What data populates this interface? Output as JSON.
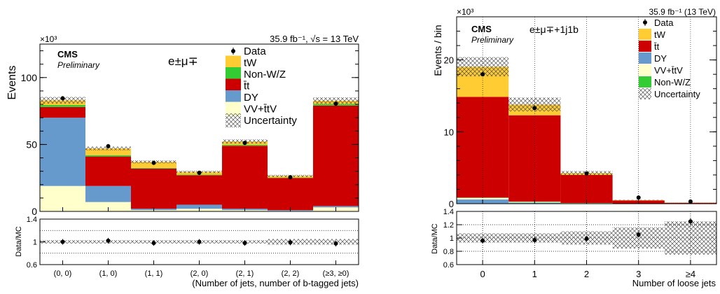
{
  "colors": {
    "tW": "#ffcc33",
    "nonwz": "#33cc33",
    "tt": "#cc0000",
    "dy": "#6699cc",
    "vv": "#ffffcc",
    "data": "#000000"
  },
  "chart_data": [
    {
      "type": "bar",
      "stacked": true,
      "channel_label": "e±μ∓",
      "cms_label": "CMS",
      "prelim_label": "Preliminary",
      "lumi_label": "35.9 fb⁻¹, √s = 13 TeV",
      "exponent_label": "×10³",
      "ylabel": "Events",
      "xlabel": "(Number of jets, number of b-tagged jets)",
      "ratio_ylabel": "Data/MC",
      "categories": [
        "(0, 0)",
        "(1, 0)",
        "(1, 1)",
        "(2, 0)",
        "(2, 1)",
        "(2, 2)",
        "(≥3, ≥0)"
      ],
      "ylim": [
        0,
        125
      ],
      "yticks": [
        0,
        50,
        100
      ],
      "yticklabels": [
        "0",
        "50",
        "100"
      ],
      "series": [
        {
          "name": "VV+t̄tV",
          "key": "vv",
          "values": [
            19,
            7,
            1,
            2,
            1,
            0.5,
            3
          ]
        },
        {
          "name": "DY",
          "key": "dy",
          "values": [
            51,
            12,
            1,
            3,
            1,
            0.5,
            1
          ]
        },
        {
          "name": "t̄t",
          "key": "tt",
          "values": [
            8,
            22,
            30,
            22,
            47,
            24,
            75
          ]
        },
        {
          "name": "Non-W/Z",
          "key": "nonwz",
          "values": [
            1.5,
            1,
            0.5,
            0.5,
            0.7,
            0.3,
            1.2
          ]
        },
        {
          "name": "tW",
          "key": "tW",
          "values": [
            3.5,
            5,
            4.5,
            2,
            2.5,
            1.2,
            2.5
          ]
        }
      ],
      "data_values": [
        84.5,
        48.7,
        36.3,
        28.8,
        51.2,
        25.5,
        80.5
      ],
      "uncertainty_frac": 0.03,
      "ratio": {
        "ylim": [
          0.6,
          1.4
        ],
        "yticks": [
          0.6,
          1,
          1.4
        ],
        "yticklabels": [
          "0.6",
          "1",
          "1.4"
        ],
        "gridlines": [
          0.8,
          1.2
        ],
        "values": [
          1.0,
          1.02,
          0.98,
          1.0,
          0.98,
          0.99,
          0.97
        ],
        "unc": [
          0.03,
          0.03,
          0.03,
          0.03,
          0.03,
          0.05,
          0.05
        ]
      },
      "legend": [
        {
          "label": "Data",
          "key": "data",
          "kind": "marker"
        },
        {
          "label": "tW",
          "key": "tW",
          "kind": "box"
        },
        {
          "label": "Non-W/Z",
          "key": "nonwz",
          "kind": "box"
        },
        {
          "label": "t̄t",
          "key": "tt",
          "kind": "box"
        },
        {
          "label": "DY",
          "key": "dy",
          "kind": "box"
        },
        {
          "label": "VV+t̄tV",
          "key": "vv",
          "kind": "box"
        },
        {
          "label": "Uncertainty",
          "key": "unc",
          "kind": "hatch"
        }
      ]
    },
    {
      "type": "bar",
      "stacked": true,
      "channel_label": "e±μ∓+1j1b",
      "cms_label": "CMS",
      "prelim_label": "Preliminary",
      "lumi_label": "35.9 fb⁻¹ (13 TeV)",
      "exponent_label": "×10³",
      "ylabel": "Events / bin",
      "xlabel": "Number of loose jets",
      "ratio_ylabel": "Data/MC",
      "categories": [
        "0",
        "1",
        "2",
        "3",
        "≥4"
      ],
      "ylim": [
        0,
        26
      ],
      "yticks": [
        0,
        10,
        20
      ],
      "yticklabels": [
        "0",
        "10",
        "20"
      ],
      "series": [
        {
          "name": "DY",
          "key": "dy",
          "values": [
            0.6,
            0.15,
            0.05,
            0.02,
            0.01
          ]
        },
        {
          "name": "VV+t̄tV",
          "key": "vv",
          "values": [
            0.2,
            0.1,
            0.03,
            0.01,
            0.01
          ]
        },
        {
          "name": "Non-W/Z",
          "key": "nonwz",
          "values": [
            0.05,
            0.05,
            0.02,
            0.01,
            0.01
          ]
        },
        {
          "name": "t̄t",
          "key": "tt",
          "values": [
            14,
            12,
            3.9,
            0.4,
            0.1
          ]
        },
        {
          "name": "tW",
          "key": "tW",
          "values": [
            4.2,
            1.5,
            0.25,
            0.06,
            0.02
          ]
        }
      ],
      "data_values": [
        18,
        13.3,
        4.2,
        0.85,
        0.3
      ],
      "uncertainty_frac": 0.07,
      "ratio": {
        "ylim": [
          0.6,
          1.4
        ],
        "yticks": [
          0.6,
          0.8,
          1,
          1.2,
          1.4
        ],
        "yticklabels": [
          "0.6",
          "0.8",
          "1",
          "1.2",
          "1.4"
        ],
        "gridlines": [
          0.8,
          1,
          1.2
        ],
        "vgrid": true,
        "values": [
          0.96,
          0.97,
          0.99,
          1.05,
          1.25
        ],
        "unc": [
          0.07,
          0.07,
          0.1,
          0.16,
          0.25
        ]
      },
      "legend": [
        {
          "label": "Data",
          "key": "data",
          "kind": "marker"
        },
        {
          "label": "tW",
          "key": "tW",
          "kind": "box"
        },
        {
          "label": "t̄t",
          "key": "tt",
          "kind": "box"
        },
        {
          "label": "DY",
          "key": "dy",
          "kind": "box"
        },
        {
          "label": "VV+t̄tV",
          "key": "vv",
          "kind": "box"
        },
        {
          "label": "Non-W/Z",
          "key": "nonwz",
          "kind": "box"
        },
        {
          "label": "Uncertainty",
          "key": "unc",
          "kind": "hatch"
        }
      ]
    }
  ]
}
